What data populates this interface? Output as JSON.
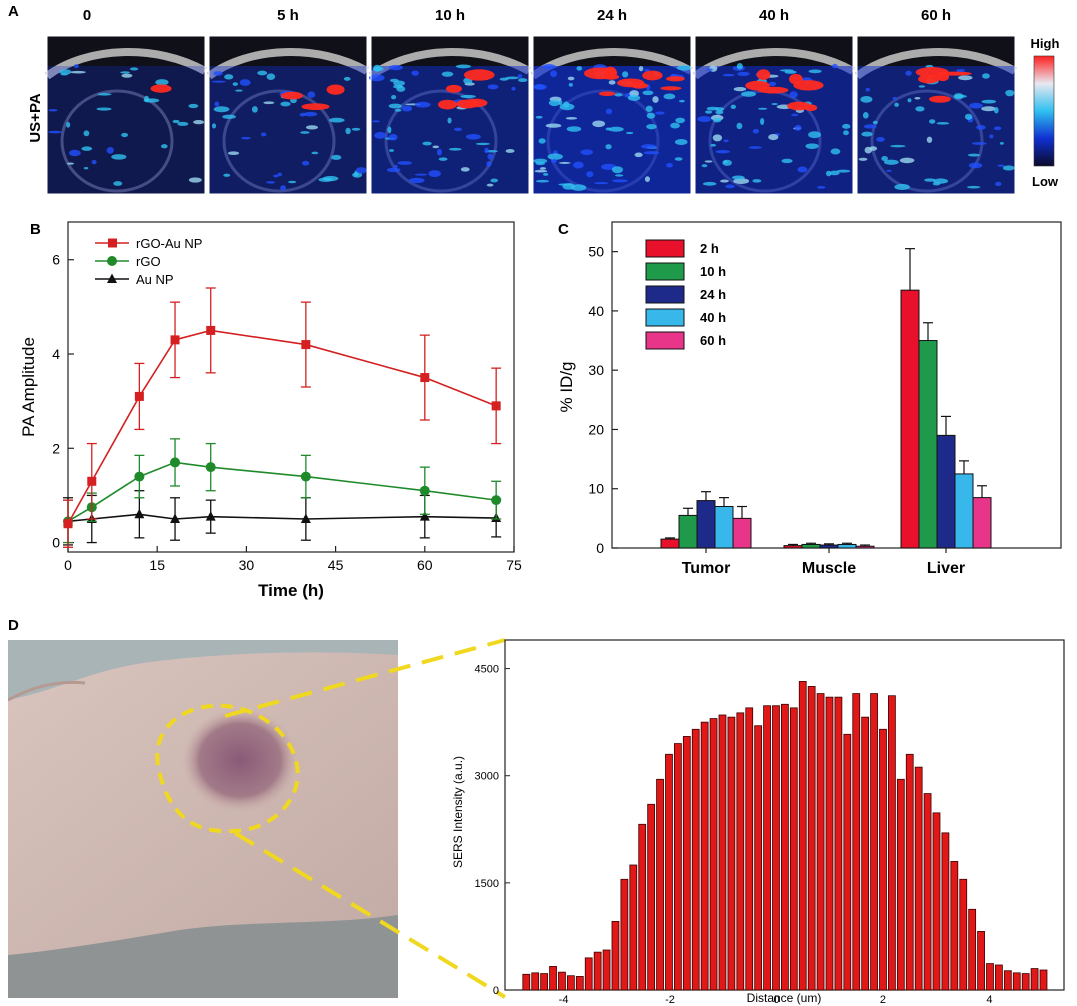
{
  "panels": {
    "a": "A",
    "b": "B",
    "c": "C",
    "d": "D"
  },
  "panel_a": {
    "row_label": "US+PA",
    "timepoints": [
      "0",
      "5 h",
      "10 h",
      "24 h",
      "40 h",
      "60 h"
    ],
    "colorbar_high": "High",
    "colorbar_low": "Low",
    "colormap": [
      "#0a0a2a",
      "#1030d0",
      "#30c0f0",
      "#e8e8f0",
      "#ff2020"
    ]
  },
  "colors": {
    "rgo_au": "#d42020",
    "rgo": "#1e8a2a",
    "au": "#111111",
    "bar_2h": "#e8102a",
    "bar_10h": "#1f9a4a",
    "bar_24h": "#1e2a8a",
    "bar_40h": "#38b8ea",
    "bar_60h": "#e8358a",
    "sers": "#e01818",
    "outline": "#f0d820"
  },
  "chart_data": [
    {
      "id": "B",
      "type": "line",
      "title": "",
      "xlabel": "Time (h)",
      "ylabel": "PA Amplitude",
      "x": [
        0,
        4,
        12,
        18,
        24,
        40,
        60,
        72
      ],
      "xlim": [
        0,
        75
      ],
      "ylim": [
        -0.2,
        6.8
      ],
      "xticks": [
        0,
        15,
        30,
        45,
        60,
        75
      ],
      "yticks": [
        0,
        2,
        4,
        6
      ],
      "legend_position": "top-left",
      "series": [
        {
          "name": "rGO-Au NP",
          "marker": "square",
          "color_key": "rgo_au",
          "values": [
            0.4,
            1.3,
            3.1,
            4.3,
            4.5,
            4.2,
            3.5,
            2.9
          ],
          "errors": [
            0.5,
            0.8,
            0.7,
            0.8,
            0.9,
            0.9,
            0.9,
            0.8
          ]
        },
        {
          "name": "rGO",
          "marker": "circle",
          "color_key": "rgo",
          "values": [
            0.45,
            0.75,
            1.4,
            1.7,
            1.6,
            1.4,
            1.1,
            0.9
          ],
          "errors": [
            0.45,
            0.3,
            0.45,
            0.5,
            0.5,
            0.45,
            0.5,
            0.4
          ]
        },
        {
          "name": "Au NP",
          "marker": "triangle",
          "color_key": "au",
          "values": [
            0.45,
            0.5,
            0.6,
            0.5,
            0.55,
            0.5,
            0.55,
            0.52
          ],
          "errors": [
            0.5,
            0.5,
            0.5,
            0.45,
            0.35,
            0.45,
            0.45,
            0.4
          ]
        }
      ]
    },
    {
      "id": "C",
      "type": "bar",
      "title": "",
      "xlabel": "",
      "ylabel": "% ID/g",
      "categories": [
        "Tumor",
        "Muscle",
        "Liver"
      ],
      "ylim": [
        0,
        55
      ],
      "yticks": [
        0,
        10,
        20,
        30,
        40,
        50
      ],
      "legend_position": "top-left",
      "series": [
        {
          "name": "2 h",
          "color_key": "bar_2h",
          "values": [
            1.5,
            0.4,
            43.5
          ],
          "errors": [
            0.2,
            0.2,
            7.0
          ]
        },
        {
          "name": "10 h",
          "color_key": "bar_10h",
          "values": [
            5.5,
            0.6,
            35.0
          ],
          "errors": [
            1.2,
            0.2,
            3.0
          ]
        },
        {
          "name": "24 h",
          "color_key": "bar_24h",
          "values": [
            8.0,
            0.5,
            19.0
          ],
          "errors": [
            1.5,
            0.2,
            3.2
          ]
        },
        {
          "name": "40 h",
          "color_key": "bar_40h",
          "values": [
            7.0,
            0.6,
            12.5
          ],
          "errors": [
            1.5,
            0.2,
            2.2
          ]
        },
        {
          "name": "60 h",
          "color_key": "bar_60h",
          "values": [
            5.0,
            0.3,
            8.5
          ],
          "errors": [
            2.0,
            0.2,
            2.0
          ]
        }
      ]
    },
    {
      "id": "D",
      "type": "bar",
      "title": "",
      "xlabel": "Distance (um)",
      "ylabel": "SERS Intensity (a.u.)",
      "xlim": [
        -5.1,
        5.4
      ],
      "ylim": [
        0,
        4900
      ],
      "xticks": [
        -4,
        -2,
        0,
        2,
        4
      ],
      "xtick_labels": [
        "-4",
        "-2",
        "0",
        "2",
        "4"
      ],
      "yticks": [
        0,
        1500,
        3000,
        4500
      ],
      "x_start": -4.7,
      "x_step": 0.1675,
      "values": [
        220,
        240,
        230,
        330,
        250,
        200,
        190,
        450,
        530,
        560,
        960,
        1550,
        1750,
        2320,
        2600,
        2950,
        3300,
        3450,
        3550,
        3650,
        3750,
        3800,
        3850,
        3820,
        3880,
        3950,
        3700,
        3980,
        3980,
        4000,
        3950,
        4320,
        4250,
        4150,
        4100,
        4100,
        3580,
        4150,
        3820,
        4150,
        3650,
        4120,
        2950,
        3300,
        3120,
        2750,
        2480,
        2200,
        1800,
        1550,
        1130,
        820,
        370,
        350,
        270,
        240,
        230,
        300,
        280
      ]
    }
  ]
}
